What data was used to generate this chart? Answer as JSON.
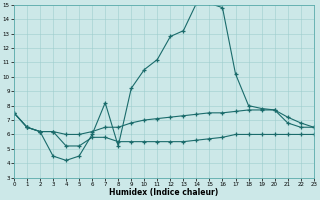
{
  "xlabel": "Humidex (Indice chaleur)",
  "xlim": [
    0,
    23
  ],
  "ylim": [
    3,
    15
  ],
  "xticks": [
    0,
    1,
    2,
    3,
    4,
    5,
    6,
    7,
    8,
    9,
    10,
    11,
    12,
    13,
    14,
    15,
    16,
    17,
    18,
    19,
    20,
    21,
    22,
    23
  ],
  "yticks": [
    3,
    4,
    5,
    6,
    7,
    8,
    9,
    10,
    11,
    12,
    13,
    14,
    15
  ],
  "bg_color": "#cce8e8",
  "line_color": "#1a6b6b",
  "line_peak_x": [
    0,
    1,
    2,
    3,
    4,
    5,
    6,
    7,
    8,
    9,
    10,
    11,
    12,
    13,
    14,
    15,
    16,
    17,
    18,
    19,
    20,
    21,
    22,
    23
  ],
  "line_peak_y": [
    7.5,
    6.5,
    6.2,
    4.5,
    4.2,
    4.5,
    6.0,
    8.2,
    5.2,
    9.2,
    10.5,
    11.2,
    12.8,
    13.2,
    15.1,
    15.1,
    14.8,
    10.2,
    8.0,
    7.8,
    7.7,
    6.8,
    6.5,
    6.5
  ],
  "line_rise_x": [
    0,
    1,
    2,
    3,
    4,
    5,
    6,
    7,
    8,
    9,
    10,
    11,
    12,
    13,
    14,
    15,
    16,
    17,
    18,
    19,
    20,
    21,
    22,
    23
  ],
  "line_rise_y": [
    7.5,
    6.5,
    6.2,
    6.2,
    6.0,
    6.0,
    6.2,
    6.5,
    6.5,
    6.8,
    7.0,
    7.1,
    7.2,
    7.3,
    7.4,
    7.5,
    7.5,
    7.6,
    7.7,
    7.7,
    7.7,
    7.2,
    6.8,
    6.5
  ],
  "line_flat_x": [
    0,
    1,
    2,
    3,
    4,
    5,
    6,
    7,
    8,
    9,
    10,
    11,
    12,
    13,
    14,
    15,
    16,
    17,
    18,
    19,
    20,
    21,
    22,
    23
  ],
  "line_flat_y": [
    7.5,
    6.5,
    6.2,
    6.2,
    5.2,
    5.2,
    5.8,
    5.8,
    5.5,
    5.5,
    5.5,
    5.5,
    5.5,
    5.5,
    5.6,
    5.7,
    5.8,
    6.0,
    6.0,
    6.0,
    6.0,
    6.0,
    6.0,
    6.0
  ]
}
